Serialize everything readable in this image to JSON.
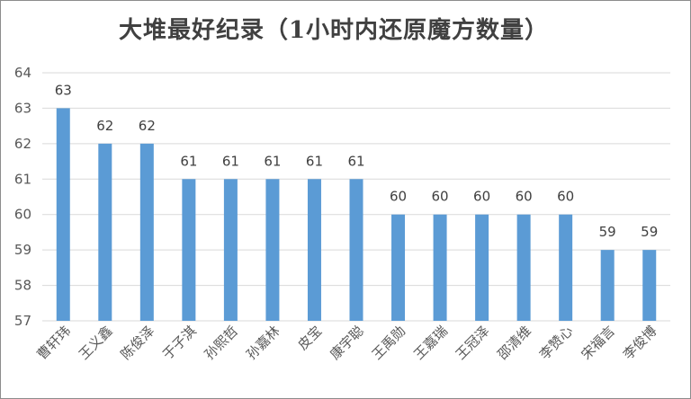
{
  "chart_data": {
    "type": "bar",
    "title": "大堆最好纪录（1小时内还原魔方数量）",
    "categories": [
      "曹轩玮",
      "王义鑫",
      "陈俊泽",
      "于子淇",
      "孙熙哲",
      "孙嘉林",
      "皮宝",
      "康宇聪",
      "王禹勋",
      "王嘉瑞",
      "王冠泽",
      "邵清维",
      "李赞心",
      "宋福言",
      "李俊博"
    ],
    "values": [
      63,
      62,
      62,
      61,
      61,
      61,
      61,
      61,
      60,
      60,
      60,
      60,
      60,
      59,
      59
    ],
    "ylim": [
      57,
      64
    ],
    "yticks": [
      57,
      58,
      59,
      60,
      61,
      62,
      63,
      64
    ],
    "grid": true,
    "bar_color": "#5b9bd5",
    "grid_color": "#d9d9d9"
  }
}
